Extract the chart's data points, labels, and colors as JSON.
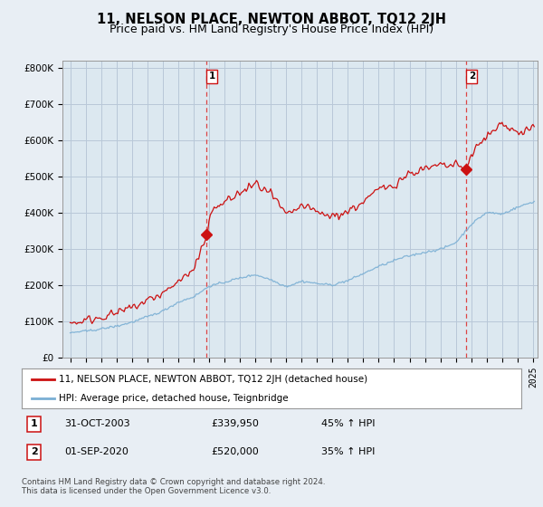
{
  "title": "11, NELSON PLACE, NEWTON ABBOT, TQ12 2JH",
  "subtitle": "Price paid vs. HM Land Registry's House Price Index (HPI)",
  "ylabel_ticks": [
    "£0",
    "£100K",
    "£200K",
    "£300K",
    "£400K",
    "£500K",
    "£600K",
    "£700K",
    "£800K"
  ],
  "ytick_values": [
    0,
    100000,
    200000,
    300000,
    400000,
    500000,
    600000,
    700000,
    800000
  ],
  "ylim": [
    0,
    820000
  ],
  "xlim_start": 1994.5,
  "xlim_end": 2025.3,
  "hpi_color": "#7aafd4",
  "price_color": "#cc1111",
  "marker1_year": 2003.83,
  "marker1_value": 339950,
  "marker1_label": "1",
  "marker2_year": 2020.67,
  "marker2_value": 520000,
  "marker2_label": "2",
  "annotation1_date": "31-OCT-2003",
  "annotation1_price": "£339,950",
  "annotation1_pct": "45% ↑ HPI",
  "annotation2_date": "01-SEP-2020",
  "annotation2_price": "£520,000",
  "annotation2_pct": "35% ↑ HPI",
  "legend_line1": "11, NELSON PLACE, NEWTON ABBOT, TQ12 2JH (detached house)",
  "legend_line2": "HPI: Average price, detached house, Teignbridge",
  "footer": "Contains HM Land Registry data © Crown copyright and database right 2024.\nThis data is licensed under the Open Government Licence v3.0.",
  "background_color": "#e8eef4",
  "plot_bg_color": "#dce8f0",
  "grid_color": "#b8c8d8",
  "dashed_line_color": "#dd4444",
  "title_fontsize": 10.5,
  "subtitle_fontsize": 9
}
